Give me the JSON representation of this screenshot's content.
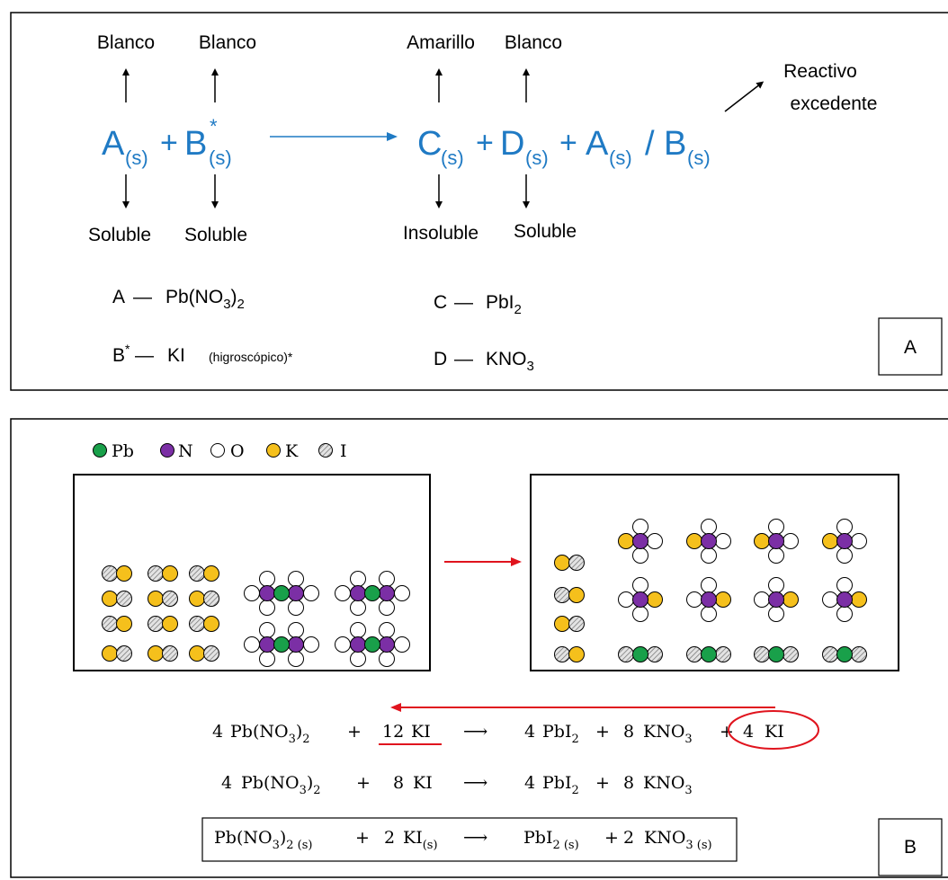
{
  "panel_a": {
    "tag": "A",
    "reactant_props": [
      {
        "color": "Blanco",
        "solubility": "Soluble"
      },
      {
        "color": "Blanco",
        "solubility": "Soluble"
      }
    ],
    "product_props": [
      {
        "color": "Amarillo",
        "solubility": "Insoluble"
      },
      {
        "color": "Blanco",
        "solubility": "Soluble"
      }
    ],
    "excess_note_line1": "Reactivo",
    "excess_note_line2": "excedente",
    "equation": {
      "a": "A",
      "b": "B",
      "star": "*",
      "c": "C",
      "d": "D",
      "state": "(s)",
      "plus": "+",
      "slash": "/"
    },
    "key": {
      "a": {
        "letter": "A",
        "dash": "—",
        "formula": "Pb(NO",
        "sub1": "3",
        "close": ")",
        "sub2": "2"
      },
      "b": {
        "letter": "B",
        "star": "*",
        "dash": "—",
        "formula": "KI",
        "note": "(higroscópico)*"
      },
      "c": {
        "letter": "C",
        "dash": "—",
        "formula": "PbI",
        "sub": "2"
      },
      "d": {
        "letter": "D",
        "dash": "—",
        "formula": "KNO",
        "sub": "3"
      }
    }
  },
  "panel_b": {
    "tag": "B",
    "legend": [
      {
        "label": "Pb",
        "color": "#19a04a"
      },
      {
        "label": "N",
        "color": "#7b2fa5"
      },
      {
        "label": "O",
        "color": "#ffffff"
      },
      {
        "label": "K",
        "color": "#f5c01c"
      },
      {
        "label": "I",
        "color": "#c9c9c9"
      }
    ],
    "eq1": {
      "c1": "4",
      "f1": "Pb(NO",
      "s1": "3",
      "f1b": ")",
      "s1b": "2",
      "plus": "+",
      "c2": "12",
      "f2": "KI",
      "arrow": "⟶",
      "c3": "4",
      "f3": "PbI",
      "s3": "2",
      "c4": "8",
      "f4": "KNO",
      "s4": "3",
      "c5": "4",
      "f5": "KI"
    },
    "eq2": {
      "c1": "4",
      "f1": "Pb(NO",
      "s1": "3",
      "f1b": ")",
      "s1b": "2",
      "plus": "+",
      "c2": "8",
      "f2": "KI",
      "arrow": "⟶",
      "c3": "4",
      "f3": "PbI",
      "s3": "2",
      "c4": "8",
      "f4": "KNO",
      "s4": "3"
    },
    "eq3": {
      "f1": "Pb(NO",
      "s1": "3",
      "f1b": ")",
      "s1b": "2 (s)",
      "plus": "+",
      "c2": "2",
      "f2": "KI",
      "s2": "(s)",
      "arrow": "⟶",
      "f3": "PbI",
      "s3": "2 (s)",
      "c4": "2",
      "f4": "KNO",
      "s4": "3 (s)"
    }
  }
}
